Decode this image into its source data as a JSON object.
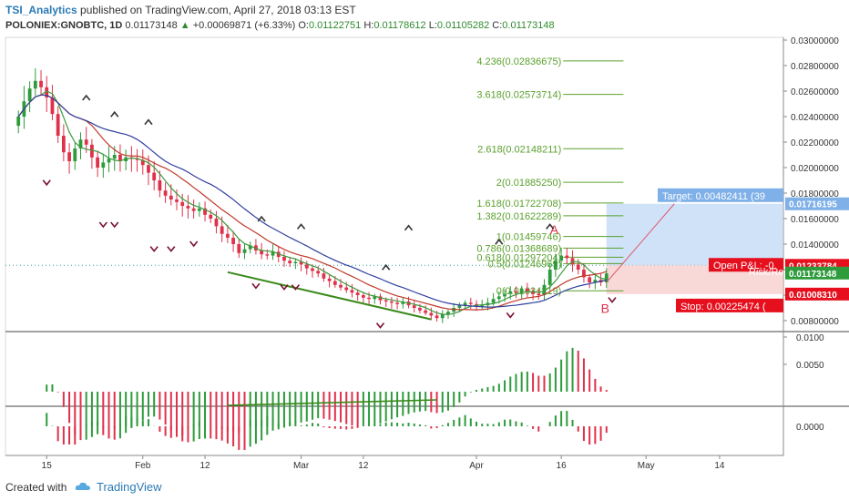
{
  "header": {
    "author": "TSI_Analytics",
    "published_text": "published on TradingView.com, April 27, 2018 03:13 EST",
    "symbol": "POLONIEX:GNOBTC, 1D",
    "last": "0.01173148",
    "change": "+0.00069871 (+6.33%)",
    "open_label": "O:",
    "open": "0.01122751",
    "high_label": "H:",
    "high": "0.01178612",
    "low_label": "L:",
    "low": "0.01105282",
    "close_label": "C:",
    "close": "0.01173148"
  },
  "footer": {
    "created_with": "Created with",
    "brand": "TradingView"
  },
  "colors": {
    "up": "#2e9b3c",
    "down": "#e0314b",
    "ma_green": "#3c9a3c",
    "ma_red": "#c0392b",
    "ma_blue": "#2f3f9e",
    "fib": "#5aa02c",
    "target_box": "#bcd6f5",
    "stop_box": "#f6c7c7",
    "label_blue": "#7fb0e8",
    "label_red": "#e60f1e"
  },
  "chart_data": {
    "type": "candlestick",
    "symbol": "POLONIEX:GNOBTC",
    "interval": "1D",
    "price_range": [
      0.007,
      0.03
    ],
    "y_ticks": [
      "0.03000000",
      "0.02800000",
      "0.02600000",
      "0.02400000",
      "0.02200000",
      "0.02000000",
      "0.01800000",
      "0.01600000",
      "0.01400000",
      "0.01200000",
      "0.01000000",
      "0.00800000"
    ],
    "x_ticks": [
      {
        "label": "15",
        "day": 6
      },
      {
        "label": "Feb",
        "day": 23
      },
      {
        "label": "12",
        "day": 34
      },
      {
        "label": "Mar",
        "day": 51
      },
      {
        "label": "12",
        "day": 62
      },
      {
        "label": "Apr",
        "day": 82
      },
      {
        "label": "16",
        "day": 97
      },
      {
        "label": "May",
        "day": 112
      },
      {
        "label": "14",
        "day": 125
      }
    ],
    "closes": [
      0.024,
      0.0252,
      0.0262,
      0.0268,
      0.0263,
      0.0255,
      0.0242,
      0.0225,
      0.0212,
      0.0205,
      0.0215,
      0.0222,
      0.0218,
      0.0208,
      0.02,
      0.0204,
      0.0207,
      0.021,
      0.0205,
      0.0208,
      0.0207,
      0.0206,
      0.0202,
      0.0196,
      0.019,
      0.0182,
      0.0178,
      0.0175,
      0.0173,
      0.017,
      0.0168,
      0.0166,
      0.0168,
      0.0163,
      0.016,
      0.0154,
      0.0148,
      0.0145,
      0.014,
      0.0133,
      0.0136,
      0.0139,
      0.0135,
      0.0132,
      0.0131,
      0.0134,
      0.013,
      0.0127,
      0.0125,
      0.0126,
      0.0124,
      0.0121,
      0.0119,
      0.0117,
      0.0113,
      0.0111,
      0.0108,
      0.0106,
      0.0104,
      0.0102,
      0.01,
      0.0098,
      0.0097,
      0.0099,
      0.0096,
      0.0095,
      0.0094,
      0.0093,
      0.0095,
      0.0092,
      0.009,
      0.0088,
      0.0086,
      0.0084,
      0.0082,
      0.0085,
      0.0087,
      0.009,
      0.0092,
      0.0094,
      0.0093,
      0.0091,
      0.0092,
      0.0094,
      0.0097,
      0.0099,
      0.0101,
      0.0103,
      0.0102,
      0.0105,
      0.0103,
      0.0101,
      0.01,
      0.0108,
      0.012,
      0.0127,
      0.0131,
      0.0129,
      0.0124,
      0.012,
      0.0114,
      0.011,
      0.0112,
      0.011,
      0.0117
    ],
    "fib_levels": [
      {
        "ratio": "0",
        "price": "0.01034219"
      },
      {
        "ratio": "0.5",
        "price": "0.01246969"
      },
      {
        "ratio": "0.618",
        "price": "0.01297204"
      },
      {
        "ratio": "0.786",
        "price": "0.01368689"
      },
      {
        "ratio": "1",
        "price": "0.01459746"
      },
      {
        "ratio": "1.382",
        "price": "0.01622289"
      },
      {
        "ratio": "1.618",
        "price": "0.01722708"
      },
      {
        "ratio": "2",
        "price": "0.01885250"
      },
      {
        "ratio": "2.618",
        "price": "0.02148211"
      },
      {
        "ratio": "3.618",
        "price": "0.02573714"
      },
      {
        "ratio": "4.236",
        "price": "0.02836675"
      }
    ],
    "price_labels": [
      {
        "name": "target",
        "price": "0.01716195",
        "color": "#7fb0e8"
      },
      {
        "name": "current_a",
        "price": "0.01233784",
        "color": "#e60f1e"
      },
      {
        "name": "last",
        "price": "0.01173148",
        "color": "#2e9b3c"
      },
      {
        "name": "stop",
        "price": "0.01008310",
        "color": "#e60f1e"
      }
    ],
    "position": {
      "target_text": "Target: 0.00482411 (39",
      "open_pl_text": "Open P&L: -0.",
      "risk_text": "Risk/Re",
      "stop_text": "Stop: 0.00225474 (",
      "entry": 0.01234,
      "target": 0.01716,
      "stop": 0.01008
    },
    "annotations": [
      {
        "label": "A"
      },
      {
        "label": "B"
      }
    ],
    "oscillator1_ticks": [
      "0.0100",
      "0.0050"
    ],
    "oscillator2_ticks": [
      "0.0000"
    ]
  }
}
